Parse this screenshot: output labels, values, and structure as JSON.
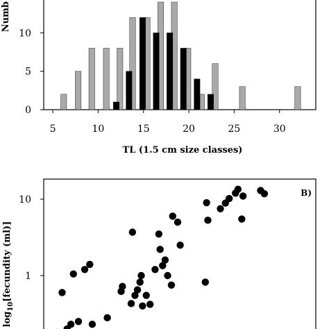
{
  "chart_data": [
    {
      "type": "bar",
      "xlabel": "TL (1.5 cm size classes)",
      "ylabel": "Numb",
      "xticks": [
        5,
        10,
        15,
        20,
        25,
        30
      ],
      "yticks": [
        0,
        5,
        10
      ],
      "xlim": [
        4,
        34
      ],
      "ylim": [
        0,
        14
      ],
      "grid": false,
      "series": [
        {
          "color": "#a9a9a9",
          "points": [
            {
              "x": 6.2,
              "y": 2
            },
            {
              "x": 7.8,
              "y": 5
            },
            {
              "x": 9.3,
              "y": 8
            },
            {
              "x": 10.9,
              "y": 8
            },
            {
              "x": 12.4,
              "y": 8
            },
            {
              "x": 13.8,
              "y": 12
            },
            {
              "x": 15.4,
              "y": 12
            },
            {
              "x": 16.9,
              "y": 14
            },
            {
              "x": 18.4,
              "y": 14
            },
            {
              "x": 19.9,
              "y": 8
            },
            {
              "x": 21.4,
              "y": 2
            },
            {
              "x": 22.9,
              "y": 6
            },
            {
              "x": 25.9,
              "y": 3
            },
            {
              "x": 32.0,
              "y": 3
            }
          ]
        },
        {
          "color": "#000000",
          "points": [
            {
              "x": 12.0,
              "y": 1
            },
            {
              "x": 13.4,
              "y": 5
            },
            {
              "x": 14.9,
              "y": 12
            },
            {
              "x": 16.4,
              "y": 10
            },
            {
              "x": 17.9,
              "y": 10
            },
            {
              "x": 19.4,
              "y": 8
            },
            {
              "x": 20.9,
              "y": 4
            },
            {
              "x": 22.4,
              "y": 2
            }
          ]
        }
      ]
    },
    {
      "type": "scatter",
      "ylabel": "log10[fecundity (ml)]",
      "yscale": "log",
      "yticks": [
        1,
        10
      ],
      "panel_label": "B)",
      "grid": false,
      "note": "x axis not visible in crop; x values in relative units 0-100",
      "xlim": [
        0,
        100
      ],
      "ylim": [
        0.1,
        20
      ],
      "points": [
        {
          "x": 2,
          "y": 0.18
        },
        {
          "x": 3.5,
          "y": 0.15
        },
        {
          "x": 4,
          "y": 0.6
        },
        {
          "x": 6,
          "y": 0.2
        },
        {
          "x": 7.5,
          "y": 0.23
        },
        {
          "x": 8.5,
          "y": 1.05
        },
        {
          "x": 10.5,
          "y": 0.25
        },
        {
          "x": 13,
          "y": 1.2
        },
        {
          "x": 15,
          "y": 1.4
        },
        {
          "x": 16,
          "y": 0.23
        },
        {
          "x": 22,
          "y": 0.28
        },
        {
          "x": 27.5,
          "y": 0.62
        },
        {
          "x": 28,
          "y": 0.72
        },
        {
          "x": 31.5,
          "y": 0.43
        },
        {
          "x": 32,
          "y": 3.7
        },
        {
          "x": 33,
          "y": 0.55
        },
        {
          "x": 34,
          "y": 0.65
        },
        {
          "x": 35,
          "y": 0.82
        },
        {
          "x": 35.5,
          "y": 1.0
        },
        {
          "x": 36,
          "y": 0.4
        },
        {
          "x": 37.5,
          "y": 0.55
        },
        {
          "x": 39,
          "y": 0.42
        },
        {
          "x": 41,
          "y": 1.2
        },
        {
          "x": 42.5,
          "y": 3.5
        },
        {
          "x": 43,
          "y": 2.2
        },
        {
          "x": 44,
          "y": 1.35
        },
        {
          "x": 45,
          "y": 1.6
        },
        {
          "x": 46,
          "y": 1.0
        },
        {
          "x": 47.5,
          "y": 0.75
        },
        {
          "x": 48,
          "y": 6.0
        },
        {
          "x": 50,
          "y": 5.0
        },
        {
          "x": 51,
          "y": 2.5
        },
        {
          "x": 61,
          "y": 0.82
        },
        {
          "x": 61.5,
          "y": 9.0
        },
        {
          "x": 62,
          "y": 5.3
        },
        {
          "x": 67,
          "y": 7.5
        },
        {
          "x": 69,
          "y": 8.9
        },
        {
          "x": 70.5,
          "y": 10.2
        },
        {
          "x": 73,
          "y": 12.0
        },
        {
          "x": 74,
          "y": 13.5
        },
        {
          "x": 76,
          "y": 11.0
        },
        {
          "x": 75.5,
          "y": 5.5
        },
        {
          "x": 83,
          "y": 13.0
        },
        {
          "x": 84.5,
          "y": 11.8
        }
      ]
    }
  ]
}
